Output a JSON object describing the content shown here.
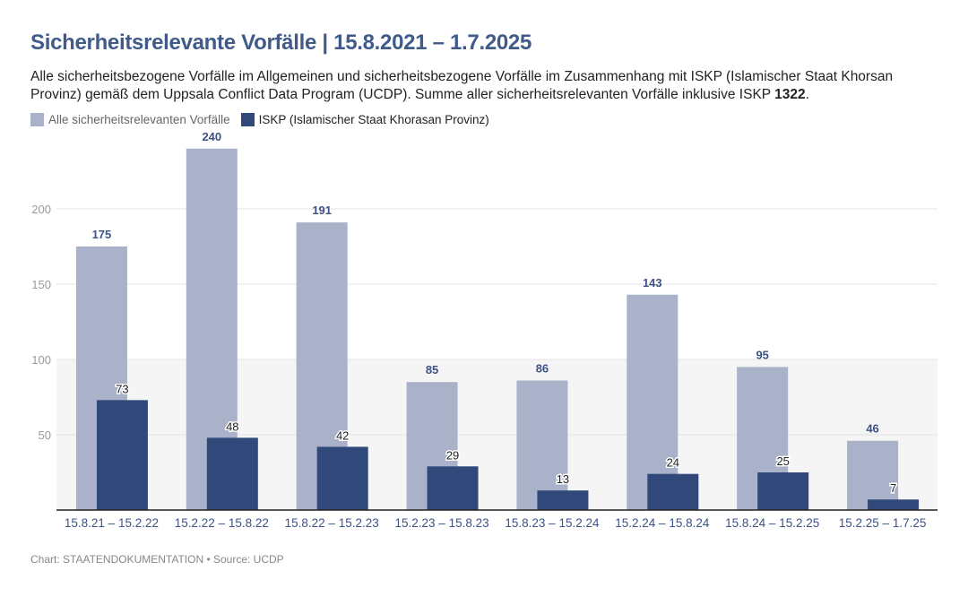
{
  "title": "Sicherheitsrelevante Vorfälle | 15.8.2021 – 1.7.2025",
  "description": "Alle sicherheitsbezogene Vorfälle im Allgemeinen und sicherheitsbezogene Vorfälle im Zusammenhang mit ISKP (Islamischer Staat Khorsan Provinz) gemäß dem Uppsala Conflict Data Program (UCDP). Summe aller sicherheitsrelevanten Vorfälle inklusive ISKP ",
  "description_total": "1322",
  "description_end": ".",
  "footer": "Chart: STAATENDOKUMENTATION • Source: UCDP",
  "chart_data": {
    "type": "bar",
    "categories": [
      "15.8.21 – 15.2.22",
      "15.2.22 – 15.8.22",
      "15.8.22 – 15.2.23",
      "15.2.23 – 15.8.23",
      "15.8.23 – 15.2.24",
      "15.2.24 – 15.8.24",
      "15.8.24 – 15.2.25",
      "15.2.25 – 1.7.25"
    ],
    "series": [
      {
        "name": "Alle sicherheitsrelevanten Vorfälle",
        "color": "#a9b2c8",
        "values": [
          175,
          240,
          191,
          85,
          86,
          143,
          95,
          46
        ]
      },
      {
        "name": "ISKP (Islamischer Staat Khorasan Provinz)",
        "color": "#31487a",
        "values": [
          73,
          48,
          42,
          29,
          13,
          24,
          25,
          7
        ]
      }
    ],
    "yticks": [
      50,
      100,
      150,
      200
    ],
    "ylim": [
      0,
      250
    ],
    "grid": true,
    "shaded_band": [
      0,
      100
    ],
    "legend": "top-left"
  }
}
